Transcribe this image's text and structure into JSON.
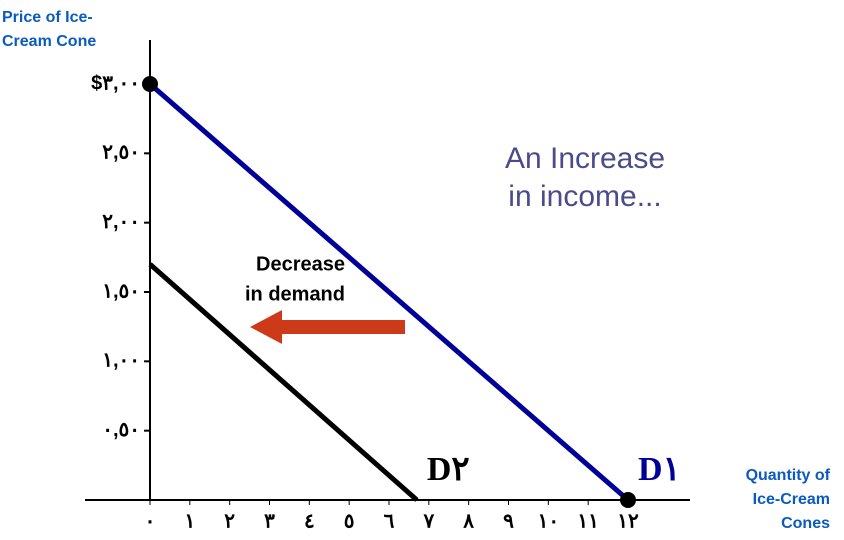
{
  "chart_data": {
    "type": "line",
    "y_label": [
      "Price of Ice-",
      "Cream Cone"
    ],
    "x_label": [
      "Quantity of",
      "Ice-Cream",
      "Cones"
    ],
    "annotations": [
      [
        "An Increase",
        "in income..."
      ],
      [
        "Decrease",
        "in demand"
      ]
    ],
    "xlim": [
      0,
      12
    ],
    "ylim": [
      0,
      3
    ],
    "xticks": [
      {
        "value": 0,
        "label": "٠"
      },
      {
        "value": 1,
        "label": "١"
      },
      {
        "value": 2,
        "label": "٢"
      },
      {
        "value": 3,
        "label": "٣"
      },
      {
        "value": 4,
        "label": "٤"
      },
      {
        "value": 5,
        "label": "٥"
      },
      {
        "value": 6,
        "label": "٦"
      },
      {
        "value": 7,
        "label": "٧"
      },
      {
        "value": 8,
        "label": "٨"
      },
      {
        "value": 9,
        "label": "٩"
      },
      {
        "value": 10,
        "label": "١٠"
      },
      {
        "value": 11,
        "label": "١١"
      },
      {
        "value": 12,
        "label": "١٢"
      }
    ],
    "yticks": [
      {
        "value": 0.5,
        "label": "٠,٥٠"
      },
      {
        "value": 1,
        "label": "١,٠٠"
      },
      {
        "value": 1.5,
        "label": "١,٥٠"
      },
      {
        "value": 2,
        "label": "٢,٠٠"
      },
      {
        "value": 2.5,
        "label": "٢,٥٠"
      },
      {
        "value": 3,
        "label": "$٣,٠٠"
      }
    ],
    "series": [
      {
        "name": "D١",
        "color": "#000099",
        "x": [
          0,
          12
        ],
        "values": [
          3,
          0
        ]
      },
      {
        "name": "D٢",
        "color": "#000000",
        "x": [
          0,
          6.7
        ],
        "values": [
          1.7,
          0
        ]
      }
    ]
  }
}
